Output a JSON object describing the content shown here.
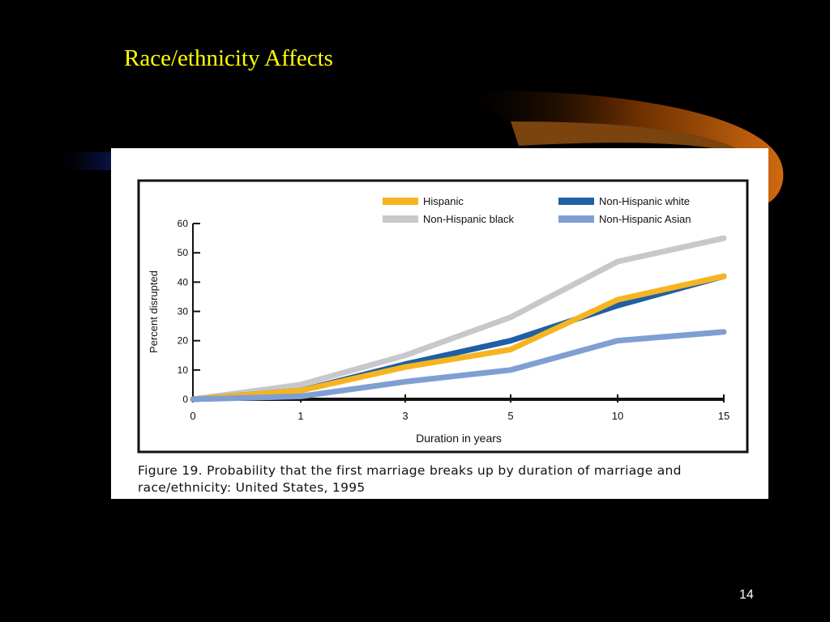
{
  "slide": {
    "title": "Race/ethnicity Affects",
    "page_number": "14"
  },
  "figure": {
    "caption_line1": "Figure 19. Probability that the first marriage breaks up by duration of marriage and",
    "caption_line2": "race/ethnicity: United States, 1995"
  },
  "chart_data": {
    "type": "line",
    "title": "",
    "xlabel": "Duration in years",
    "ylabel": "Percent disrupted",
    "x": [
      0,
      1,
      3,
      5,
      10,
      15
    ],
    "x_tick_labels": [
      "0",
      "1",
      "3",
      "5",
      "10",
      "15"
    ],
    "y_ticks": [
      0,
      10,
      20,
      30,
      40,
      50,
      60
    ],
    "ylim": [
      0,
      60
    ],
    "grid": false,
    "legend_position": "top-right",
    "series": [
      {
        "name": "Hispanic",
        "color": "#f6b421",
        "values": [
          0,
          3,
          11,
          17,
          34,
          42
        ]
      },
      {
        "name": "Non-Hispanic white",
        "color": "#1f5fa5",
        "values": [
          0,
          3,
          12,
          20,
          32,
          42
        ]
      },
      {
        "name": "Non-Hispanic black",
        "color": "#c8c8cc",
        "values": [
          0,
          5,
          15,
          28,
          47,
          55
        ]
      },
      {
        "name": "Non-Hispanic Asian",
        "color": "#7f9fd3",
        "values": [
          0,
          1,
          6,
          10,
          20,
          23
        ]
      }
    ]
  }
}
